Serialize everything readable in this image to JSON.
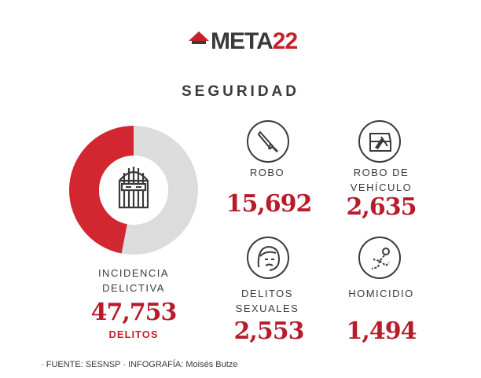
{
  "header": {
    "logo_main": "META",
    "logo_accent": "22",
    "title": "SEGURIDAD"
  },
  "colors": {
    "accent": "#c8202b",
    "number": "#b71c2a",
    "donut_rest": "#dcdcdc"
  },
  "chart_data": {
    "type": "pie",
    "label_line1": "INCIDENCIA",
    "label_line2": "DELICTIVA",
    "total": "47,753",
    "total_unit": "DELITOS",
    "categories": [
      "ROBO",
      "ROBO DE VEHÍCULO",
      "DELITOS SEXUALES",
      "HOMICIDIO"
    ],
    "values": [
      15692,
      2635,
      2553,
      1494
    ],
    "highlight_fraction": 0.47
  },
  "stats": [
    {
      "label_line1": "ROBO",
      "label_line2": "",
      "value": "15,692",
      "icon": "knife-icon"
    },
    {
      "label_line1": "ROBO DE",
      "label_line2": "VEHÍCULO",
      "value": "2,635",
      "icon": "car-theft-icon"
    },
    {
      "label_line1": "DELITOS",
      "label_line2": "SEXUALES",
      "value": "2,553",
      "icon": "distressed-face-icon"
    },
    {
      "label_line1": "HOMICIDIO",
      "label_line2": "",
      "value": "1,494",
      "icon": "fallen-body-icon"
    }
  ],
  "footer": {
    "source": "· FUENTE: SESNSP  · INFOGRAFÍA: Moisés Butze"
  }
}
